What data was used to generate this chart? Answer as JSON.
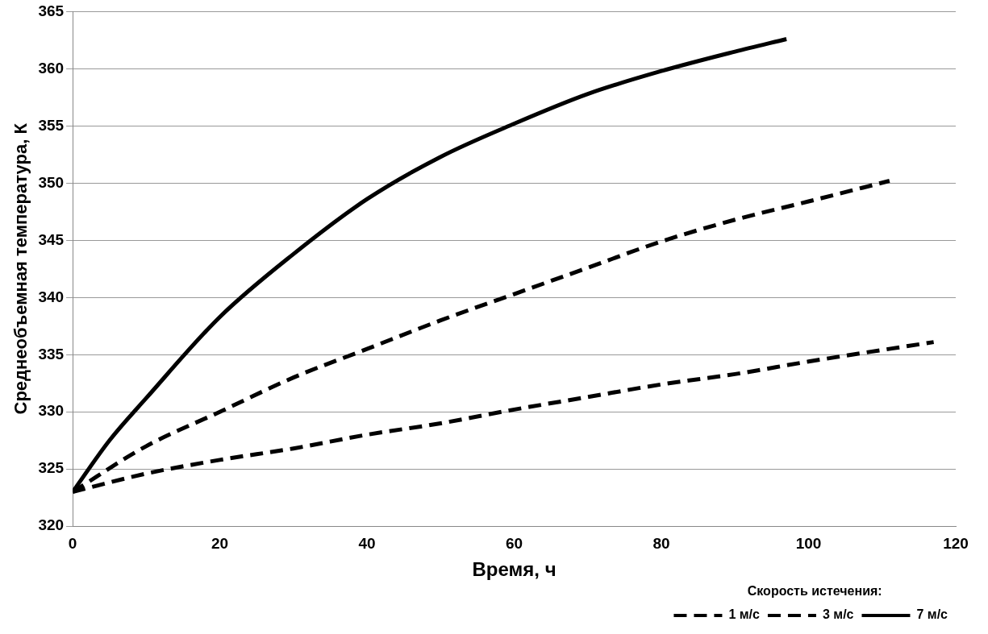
{
  "chart_data": {
    "type": "line",
    "xlabel": "Время, ч",
    "ylabel": "Среднеобъемная температура, К",
    "legend_title": "Скорость истечения:",
    "legend": "bottom right",
    "grid": "y",
    "marker": "none",
    "xlim": [
      0,
      120
    ],
    "xticks": [
      0,
      20,
      40,
      60,
      80,
      100,
      120
    ],
    "ylim": [
      320,
      365
    ],
    "yticks": [
      320,
      325,
      330,
      335,
      340,
      345,
      350,
      355,
      360,
      365
    ],
    "series": [
      {
        "name": "1 м/с",
        "color": "#000000",
        "line_style": "dashed",
        "x": [
          0,
          10,
          20,
          30,
          40,
          50,
          60,
          70,
          80,
          90,
          100,
          117
        ],
        "values": [
          323,
          324.6,
          325.8,
          326.8,
          328,
          329,
          330.2,
          331.3,
          332.4,
          333.3,
          334.4,
          336.1
        ]
      },
      {
        "name": "3 м/с",
        "color": "#000000",
        "line_style": "dashed",
        "x": [
          0,
          10,
          20,
          30,
          40,
          50,
          60,
          70,
          80,
          90,
          100,
          111
        ],
        "values": [
          323,
          327,
          330,
          333,
          335.5,
          338,
          340.3,
          342.6,
          344.9,
          346.8,
          348.4,
          350.2
        ]
      },
      {
        "name": "7 м/с",
        "color": "#000000",
        "line_style": "solid",
        "x": [
          0,
          5,
          10,
          20,
          30,
          40,
          50,
          60,
          70,
          80,
          90,
          97
        ],
        "values": [
          323,
          327.5,
          331.2,
          338.3,
          343.8,
          348.6,
          352.3,
          355.2,
          357.8,
          359.8,
          361.5,
          362.6
        ]
      }
    ]
  }
}
